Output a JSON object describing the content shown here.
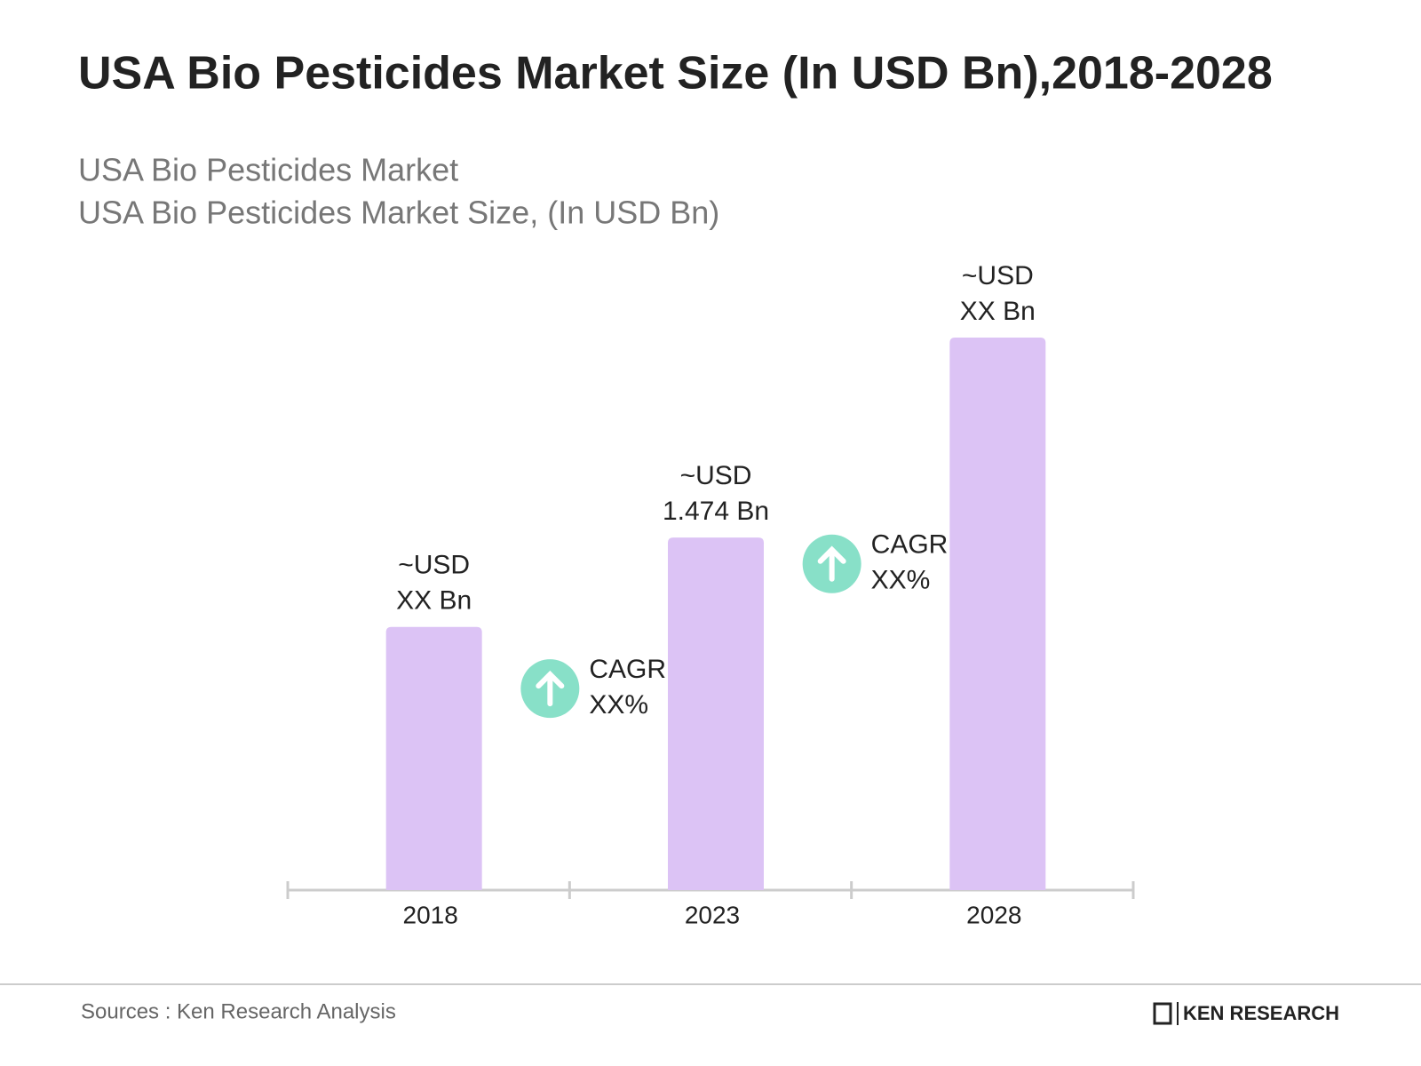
{
  "chart_data": {
    "type": "bar",
    "title": "USA Bio Pesticides Market Size (In USD Bn),2018-2028",
    "subtitle": [
      "USA Bio Pesticides Market",
      "USA Bio Pesticides Market Size, (In USD Bn)"
    ],
    "categories": [
      "2018",
      "2023",
      "2028"
    ],
    "values": [
      1.1,
      1.474,
      2.31
    ],
    "value_labels": [
      [
        "~USD",
        "XX Bn"
      ],
      [
        "~USD",
        "1.474 Bn"
      ],
      [
        "~USD",
        "XX Bn"
      ]
    ],
    "color": "#dcc3f5",
    "annotations": [
      [
        "CAGR",
        "XX%"
      ],
      [
        "CAGR",
        "XX%"
      ]
    ],
    "source": "Sources : Ken Research Analysis",
    "logo": "KEN RESEARCH"
  }
}
